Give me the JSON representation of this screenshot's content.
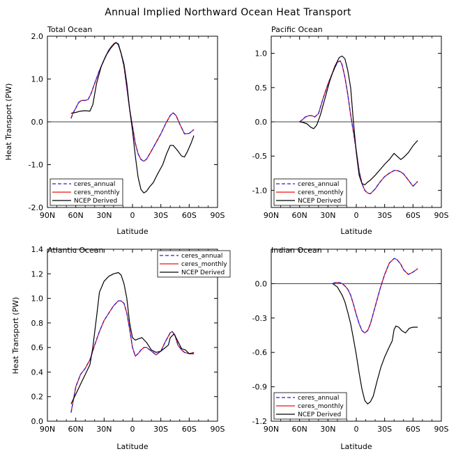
{
  "figure": {
    "title": "Annual Implied Northward Ocean Heat Transport"
  },
  "legend_labels": {
    "ceres_annual": "ceres_annual",
    "ceres_monthly": "ceres_monthly",
    "ncep": "NCEP Derived"
  },
  "colors": {
    "ceres_annual": "#2222dd",
    "ceres_monthly": "#ee1111",
    "ncep": "#000000"
  },
  "chart_data": [
    {
      "type": "line",
      "title": "Total Ocean",
      "xlabel": "Latitude",
      "ylabel": "Heat Transport (PW)",
      "x_unit": "degrees latitude (positive = N, negative = S)",
      "xlim": [
        90,
        -90
      ],
      "ylim": [
        -2.0,
        2.0
      ],
      "x_ticks": [
        90,
        60,
        30,
        0,
        -30,
        -60,
        -90
      ],
      "x_tick_labels": [
        "90N",
        "60N",
        "30N",
        "0",
        "30S",
        "60S",
        "90S"
      ],
      "y_ticks": [
        -2.0,
        -1.0,
        0.0,
        1.0,
        2.0
      ],
      "y_tick_labels": [
        "-2.0",
        "-1.0",
        "0.0",
        "1.0",
        "2.0"
      ],
      "zero_line": true,
      "legend_position": "bottom-left",
      "series": [
        {
          "name": "ceres_annual",
          "x": [
            65,
            63,
            60,
            57,
            54,
            50,
            47,
            44,
            40,
            35,
            30,
            25,
            20,
            17,
            15,
            12,
            9,
            6,
            3,
            0,
            -3,
            -6,
            -9,
            -12,
            -15,
            -20,
            -25,
            -30,
            -35,
            -40,
            -43,
            -46,
            -50,
            -55,
            -60,
            -65
          ],
          "y": [
            0.08,
            0.2,
            0.32,
            0.45,
            0.5,
            0.5,
            0.52,
            0.65,
            0.9,
            1.2,
            1.45,
            1.68,
            1.82,
            1.85,
            1.8,
            1.6,
            1.3,
            0.8,
            0.3,
            -0.1,
            -0.5,
            -0.75,
            -0.88,
            -0.92,
            -0.87,
            -0.68,
            -0.48,
            -0.28,
            -0.05,
            0.15,
            0.21,
            0.15,
            -0.05,
            -0.28,
            -0.27,
            -0.18
          ]
        },
        {
          "name": "ceres_monthly",
          "x": [
            65,
            63,
            60,
            57,
            54,
            50,
            47,
            44,
            40,
            35,
            30,
            25,
            20,
            17,
            15,
            12,
            9,
            6,
            3,
            0,
            -3,
            -6,
            -9,
            -12,
            -15,
            -20,
            -25,
            -30,
            -35,
            -40,
            -43,
            -46,
            -50,
            -55,
            -60,
            -65
          ],
          "y": [
            0.08,
            0.2,
            0.32,
            0.45,
            0.5,
            0.5,
            0.52,
            0.65,
            0.9,
            1.2,
            1.45,
            1.68,
            1.82,
            1.85,
            1.8,
            1.6,
            1.3,
            0.8,
            0.3,
            -0.1,
            -0.5,
            -0.75,
            -0.88,
            -0.92,
            -0.87,
            -0.68,
            -0.48,
            -0.28,
            -0.05,
            0.15,
            0.21,
            0.15,
            -0.05,
            -0.28,
            -0.27,
            -0.18
          ]
        },
        {
          "name": "NCEP Derived",
          "x": [
            65,
            60,
            55,
            50,
            45,
            42,
            38,
            33,
            28,
            23,
            18,
            15,
            12,
            9,
            6,
            3,
            0,
            -3,
            -6,
            -9,
            -12,
            -15,
            -18,
            -22,
            -27,
            -32,
            -36,
            -40,
            -43,
            -47,
            -52,
            -55,
            -58,
            -62,
            -65
          ],
          "y": [
            0.2,
            0.22,
            0.25,
            0.26,
            0.25,
            0.4,
            0.9,
            1.3,
            1.55,
            1.72,
            1.85,
            1.82,
            1.6,
            1.35,
            0.9,
            0.3,
            -0.2,
            -0.8,
            -1.3,
            -1.58,
            -1.66,
            -1.62,
            -1.52,
            -1.42,
            -1.2,
            -1.0,
            -0.75,
            -0.55,
            -0.55,
            -0.65,
            -0.8,
            -0.82,
            -0.7,
            -0.5,
            -0.32
          ]
        }
      ]
    },
    {
      "type": "line",
      "title": "Pacific Ocean",
      "xlabel": "Latitude",
      "ylabel": "",
      "x_unit": "degrees latitude (positive = N, negative = S)",
      "xlim": [
        90,
        -90
      ],
      "ylim": [
        -1.25,
        1.25
      ],
      "x_ticks": [
        90,
        60,
        30,
        0,
        -30,
        -60,
        -90
      ],
      "x_tick_labels": [
        "90N",
        "60N",
        "30N",
        "0",
        "30S",
        "60S",
        "90S"
      ],
      "y_ticks": [
        -1.0,
        -0.5,
        0.0,
        0.5,
        1.0
      ],
      "y_tick_labels": [
        "-1.0",
        "-0.5",
        "0.0",
        "0.5",
        "1.0"
      ],
      "zero_line": true,
      "legend_position": "bottom-left",
      "series": [
        {
          "name": "ceres_annual",
          "x": [
            60,
            57,
            54,
            50,
            47,
            44,
            40,
            35,
            30,
            25,
            20,
            17,
            15,
            12,
            9,
            6,
            3,
            0,
            -3,
            -6,
            -9,
            -12,
            -15,
            -20,
            -25,
            -30,
            -35,
            -40,
            -43,
            -47,
            -50,
            -55,
            -60,
            -65
          ],
          "y": [
            0.0,
            0.03,
            0.07,
            0.09,
            0.09,
            0.07,
            0.12,
            0.35,
            0.55,
            0.72,
            0.87,
            0.89,
            0.83,
            0.65,
            0.4,
            0.1,
            -0.15,
            -0.42,
            -0.72,
            -0.9,
            -1.0,
            -1.04,
            -1.05,
            -0.98,
            -0.88,
            -0.8,
            -0.75,
            -0.71,
            -0.71,
            -0.73,
            -0.76,
            -0.85,
            -0.94,
            -0.87
          ]
        },
        {
          "name": "ceres_monthly",
          "x": [
            60,
            57,
            54,
            50,
            47,
            44,
            40,
            35,
            30,
            25,
            20,
            17,
            15,
            12,
            9,
            6,
            3,
            0,
            -3,
            -6,
            -9,
            -12,
            -15,
            -20,
            -25,
            -30,
            -35,
            -40,
            -43,
            -47,
            -50,
            -55,
            -60,
            -65
          ],
          "y": [
            0.0,
            0.03,
            0.07,
            0.09,
            0.09,
            0.07,
            0.12,
            0.35,
            0.55,
            0.72,
            0.87,
            0.89,
            0.83,
            0.65,
            0.4,
            0.1,
            -0.15,
            -0.42,
            -0.72,
            -0.9,
            -1.0,
            -1.04,
            -1.05,
            -0.98,
            -0.88,
            -0.8,
            -0.75,
            -0.71,
            -0.71,
            -0.73,
            -0.76,
            -0.85,
            -0.94,
            -0.87
          ]
        },
        {
          "name": "NCEP Derived",
          "x": [
            60,
            56,
            52,
            48,
            45,
            42,
            38,
            33,
            28,
            23,
            18,
            15,
            12,
            9,
            6,
            3,
            0,
            -3,
            -6,
            -9,
            -12,
            -15,
            -20,
            -25,
            -30,
            -35,
            -40,
            -43,
            -47,
            -50,
            -55,
            -60,
            -65
          ],
          "y": [
            0.0,
            -0.01,
            -0.03,
            -0.08,
            -0.1,
            -0.05,
            0.1,
            0.35,
            0.6,
            0.8,
            0.94,
            0.96,
            0.92,
            0.75,
            0.5,
            0.0,
            -0.45,
            -0.78,
            -0.9,
            -0.92,
            -0.88,
            -0.85,
            -0.78,
            -0.7,
            -0.62,
            -0.55,
            -0.46,
            -0.5,
            -0.55,
            -0.52,
            -0.45,
            -0.35,
            -0.27
          ]
        }
      ]
    },
    {
      "type": "line",
      "title": "Atlantic Ocean",
      "xlabel": "Latitude",
      "ylabel": "Heat Transport (PW)",
      "x_unit": "degrees latitude (positive = N, negative = S)",
      "xlim": [
        90,
        -90
      ],
      "ylim": [
        0.0,
        1.4
      ],
      "x_ticks": [
        90,
        60,
        30,
        0,
        -30,
        -60,
        -90
      ],
      "x_tick_labels": [
        "90N",
        "60N",
        "30N",
        "0",
        "30S",
        "60S",
        "90S"
      ],
      "y_ticks": [
        0.0,
        0.2,
        0.4,
        0.6,
        0.8,
        1.0,
        1.2,
        1.4
      ],
      "y_tick_labels": [
        "0.0",
        "0.2",
        "0.4",
        "0.6",
        "0.8",
        "1.0",
        "1.2",
        "1.4"
      ],
      "zero_line": false,
      "legend_position": "top-right",
      "series": [
        {
          "name": "ceres_annual",
          "x": [
            65,
            60,
            55,
            50,
            45,
            40,
            35,
            30,
            25,
            20,
            15,
            12,
            9,
            6,
            3,
            0,
            -3,
            -6,
            -9,
            -12,
            -15,
            -20,
            -25,
            -30,
            -35,
            -40,
            -42,
            -45,
            -48,
            -52,
            -55,
            -60,
            -65
          ],
          "y": [
            0.07,
            0.28,
            0.38,
            0.43,
            0.5,
            0.62,
            0.73,
            0.82,
            0.88,
            0.94,
            0.98,
            0.98,
            0.96,
            0.88,
            0.75,
            0.6,
            0.53,
            0.55,
            0.58,
            0.6,
            0.6,
            0.57,
            0.54,
            0.57,
            0.65,
            0.72,
            0.73,
            0.7,
            0.62,
            0.58,
            0.56,
            0.55,
            0.56
          ]
        },
        {
          "name": "ceres_monthly",
          "x": [
            65,
            60,
            55,
            50,
            45,
            40,
            35,
            30,
            25,
            20,
            15,
            12,
            9,
            6,
            3,
            0,
            -3,
            -6,
            -9,
            -12,
            -15,
            -20,
            -25,
            -30,
            -35,
            -40,
            -42,
            -45,
            -48,
            -52,
            -55,
            -60,
            -65
          ],
          "y": [
            0.07,
            0.28,
            0.38,
            0.43,
            0.5,
            0.62,
            0.73,
            0.82,
            0.88,
            0.94,
            0.98,
            0.98,
            0.96,
            0.88,
            0.75,
            0.6,
            0.53,
            0.55,
            0.58,
            0.6,
            0.6,
            0.57,
            0.54,
            0.57,
            0.65,
            0.72,
            0.73,
            0.7,
            0.62,
            0.58,
            0.56,
            0.55,
            0.56
          ]
        },
        {
          "name": "NCEP Derived",
          "x": [
            65,
            60,
            55,
            50,
            45,
            42,
            38,
            35,
            30,
            25,
            20,
            15,
            12,
            9,
            6,
            3,
            0,
            -3,
            -6,
            -10,
            -15,
            -20,
            -25,
            -30,
            -35,
            -38,
            -40,
            -44,
            -48,
            -52,
            -56,
            -60,
            -65
          ],
          "y": [
            0.14,
            0.22,
            0.3,
            0.38,
            0.46,
            0.6,
            0.85,
            1.05,
            1.14,
            1.18,
            1.2,
            1.21,
            1.19,
            1.12,
            1.0,
            0.8,
            0.68,
            0.66,
            0.67,
            0.68,
            0.64,
            0.58,
            0.56,
            0.57,
            0.6,
            0.62,
            0.68,
            0.71,
            0.65,
            0.59,
            0.58,
            0.55,
            0.55
          ]
        }
      ]
    },
    {
      "type": "line",
      "title": "Indian Ocean",
      "xlabel": "Latitude",
      "ylabel": "",
      "x_unit": "degrees latitude (positive = N, negative = S)",
      "xlim": [
        90,
        -90
      ],
      "ylim": [
        -1.2,
        0.3
      ],
      "x_ticks": [
        90,
        60,
        30,
        0,
        -30,
        -60,
        -90
      ],
      "x_tick_labels": [
        "90N",
        "60N",
        "30N",
        "0",
        "30S",
        "60S",
        "90S"
      ],
      "y_ticks": [
        -1.2,
        -0.9,
        -0.6,
        -0.3,
        0.0
      ],
      "y_tick_labels": [
        "-1.2",
        "-0.9",
        "-0.6",
        "-0.3",
        "0.0"
      ],
      "zero_line": true,
      "legend_position": "bottom-left",
      "series": [
        {
          "name": "ceres_annual",
          "x": [
            25,
            22,
            18,
            15,
            12,
            9,
            6,
            3,
            0,
            -3,
            -6,
            -9,
            -12,
            -15,
            -20,
            -25,
            -30,
            -35,
            -40,
            -43,
            -47,
            -50,
            -55,
            -60,
            -65
          ],
          "y": [
            0.0,
            0.01,
            0.01,
            0.0,
            -0.02,
            -0.05,
            -0.1,
            -0.18,
            -0.27,
            -0.35,
            -0.41,
            -0.43,
            -0.41,
            -0.35,
            -0.2,
            -0.05,
            0.08,
            0.18,
            0.22,
            0.21,
            0.17,
            0.12,
            0.08,
            0.1,
            0.13
          ]
        },
        {
          "name": "ceres_monthly",
          "x": [
            25,
            22,
            18,
            15,
            12,
            9,
            6,
            3,
            0,
            -3,
            -6,
            -9,
            -12,
            -15,
            -20,
            -25,
            -30,
            -35,
            -40,
            -43,
            -47,
            -50,
            -55,
            -60,
            -65
          ],
          "y": [
            0.0,
            0.01,
            0.01,
            0.0,
            -0.02,
            -0.05,
            -0.1,
            -0.18,
            -0.27,
            -0.35,
            -0.41,
            -0.43,
            -0.41,
            -0.35,
            -0.2,
            -0.05,
            0.08,
            0.18,
            0.22,
            0.21,
            0.17,
            0.12,
            0.08,
            0.1,
            0.13
          ]
        },
        {
          "name": "NCEP Derived",
          "x": [
            25,
            20,
            15,
            12,
            9,
            6,
            3,
            0,
            -3,
            -6,
            -9,
            -12,
            -15,
            -18,
            -22,
            -26,
            -30,
            -35,
            -38,
            -40,
            -42,
            -45,
            -48,
            -52,
            -56,
            -60,
            -65
          ],
          "y": [
            0.0,
            -0.03,
            -0.1,
            -0.16,
            -0.25,
            -0.35,
            -0.48,
            -0.62,
            -0.78,
            -0.92,
            -1.02,
            -1.05,
            -1.03,
            -0.98,
            -0.85,
            -0.73,
            -0.64,
            -0.55,
            -0.5,
            -0.4,
            -0.37,
            -0.38,
            -0.41,
            -0.43,
            -0.39,
            -0.38,
            -0.38
          ]
        }
      ]
    }
  ]
}
